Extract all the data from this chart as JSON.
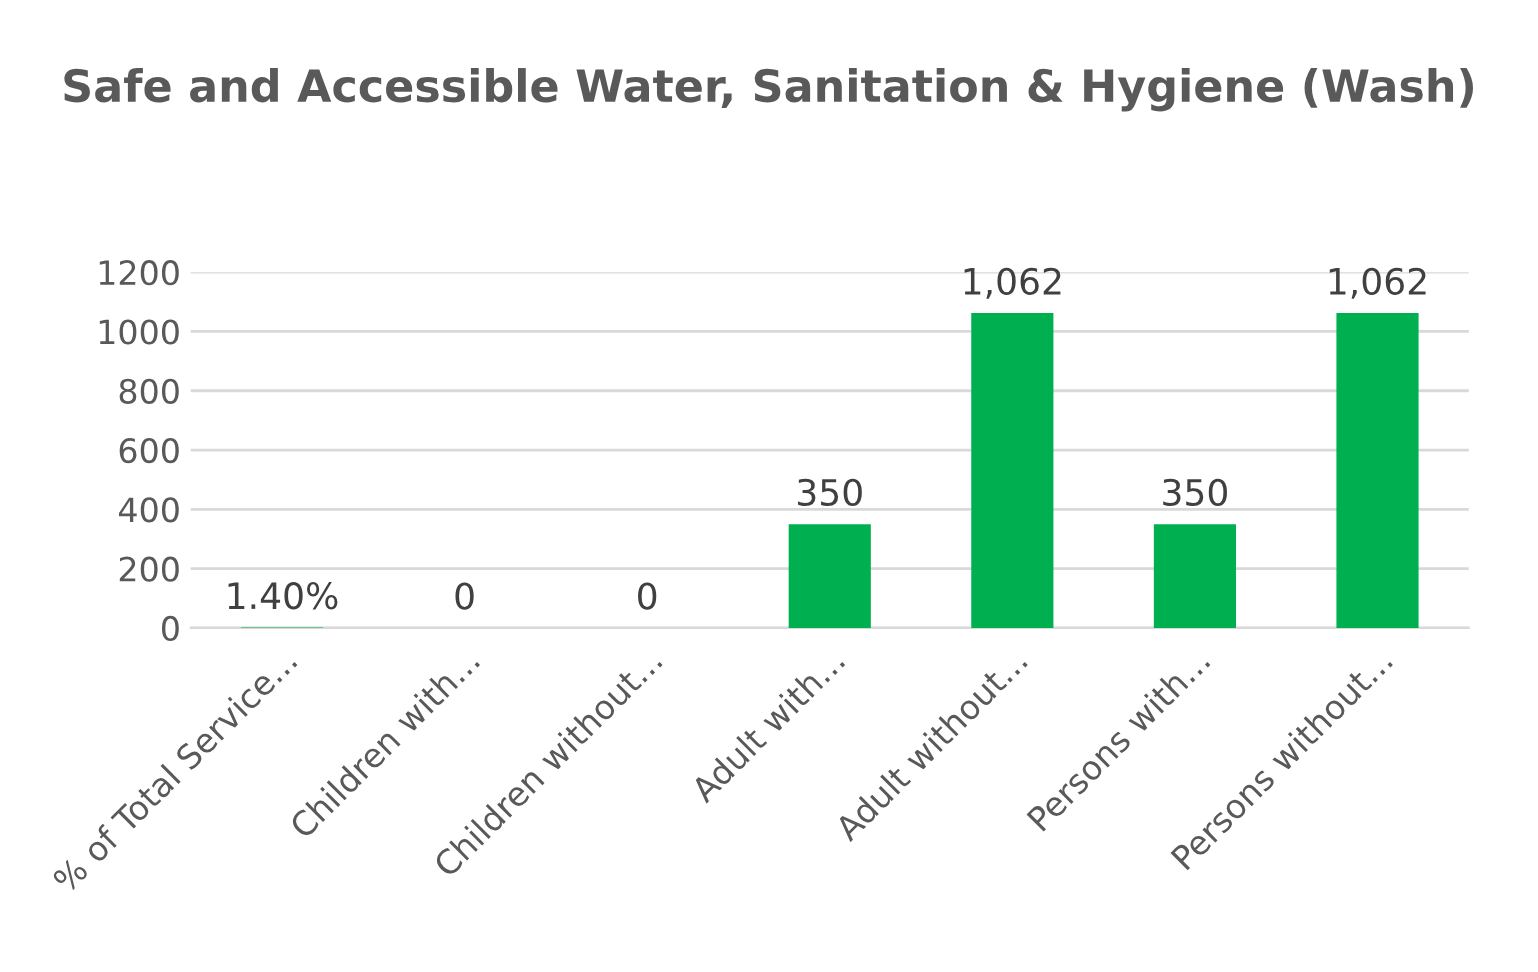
{
  "chart_data": {
    "type": "bar",
    "title": "Safe and Accessible Water, Sanitation & Hygiene (Wash)",
    "categories": [
      "% of Total Service...",
      "Children with...",
      "Children without...",
      "Adult with...",
      "Adult without...",
      "Persons with...",
      "Persons without..."
    ],
    "values": [
      1.4,
      0,
      0,
      350,
      1062,
      350,
      1062
    ],
    "value_labels": [
      "1.40%",
      "0",
      "0",
      "350",
      "1,062",
      "350",
      "1,062"
    ],
    "color": "#00b050",
    "ylim": [
      0,
      1200
    ],
    "yticks": [
      0,
      200,
      400,
      600,
      800,
      1000,
      1200
    ],
    "grid": "y"
  }
}
